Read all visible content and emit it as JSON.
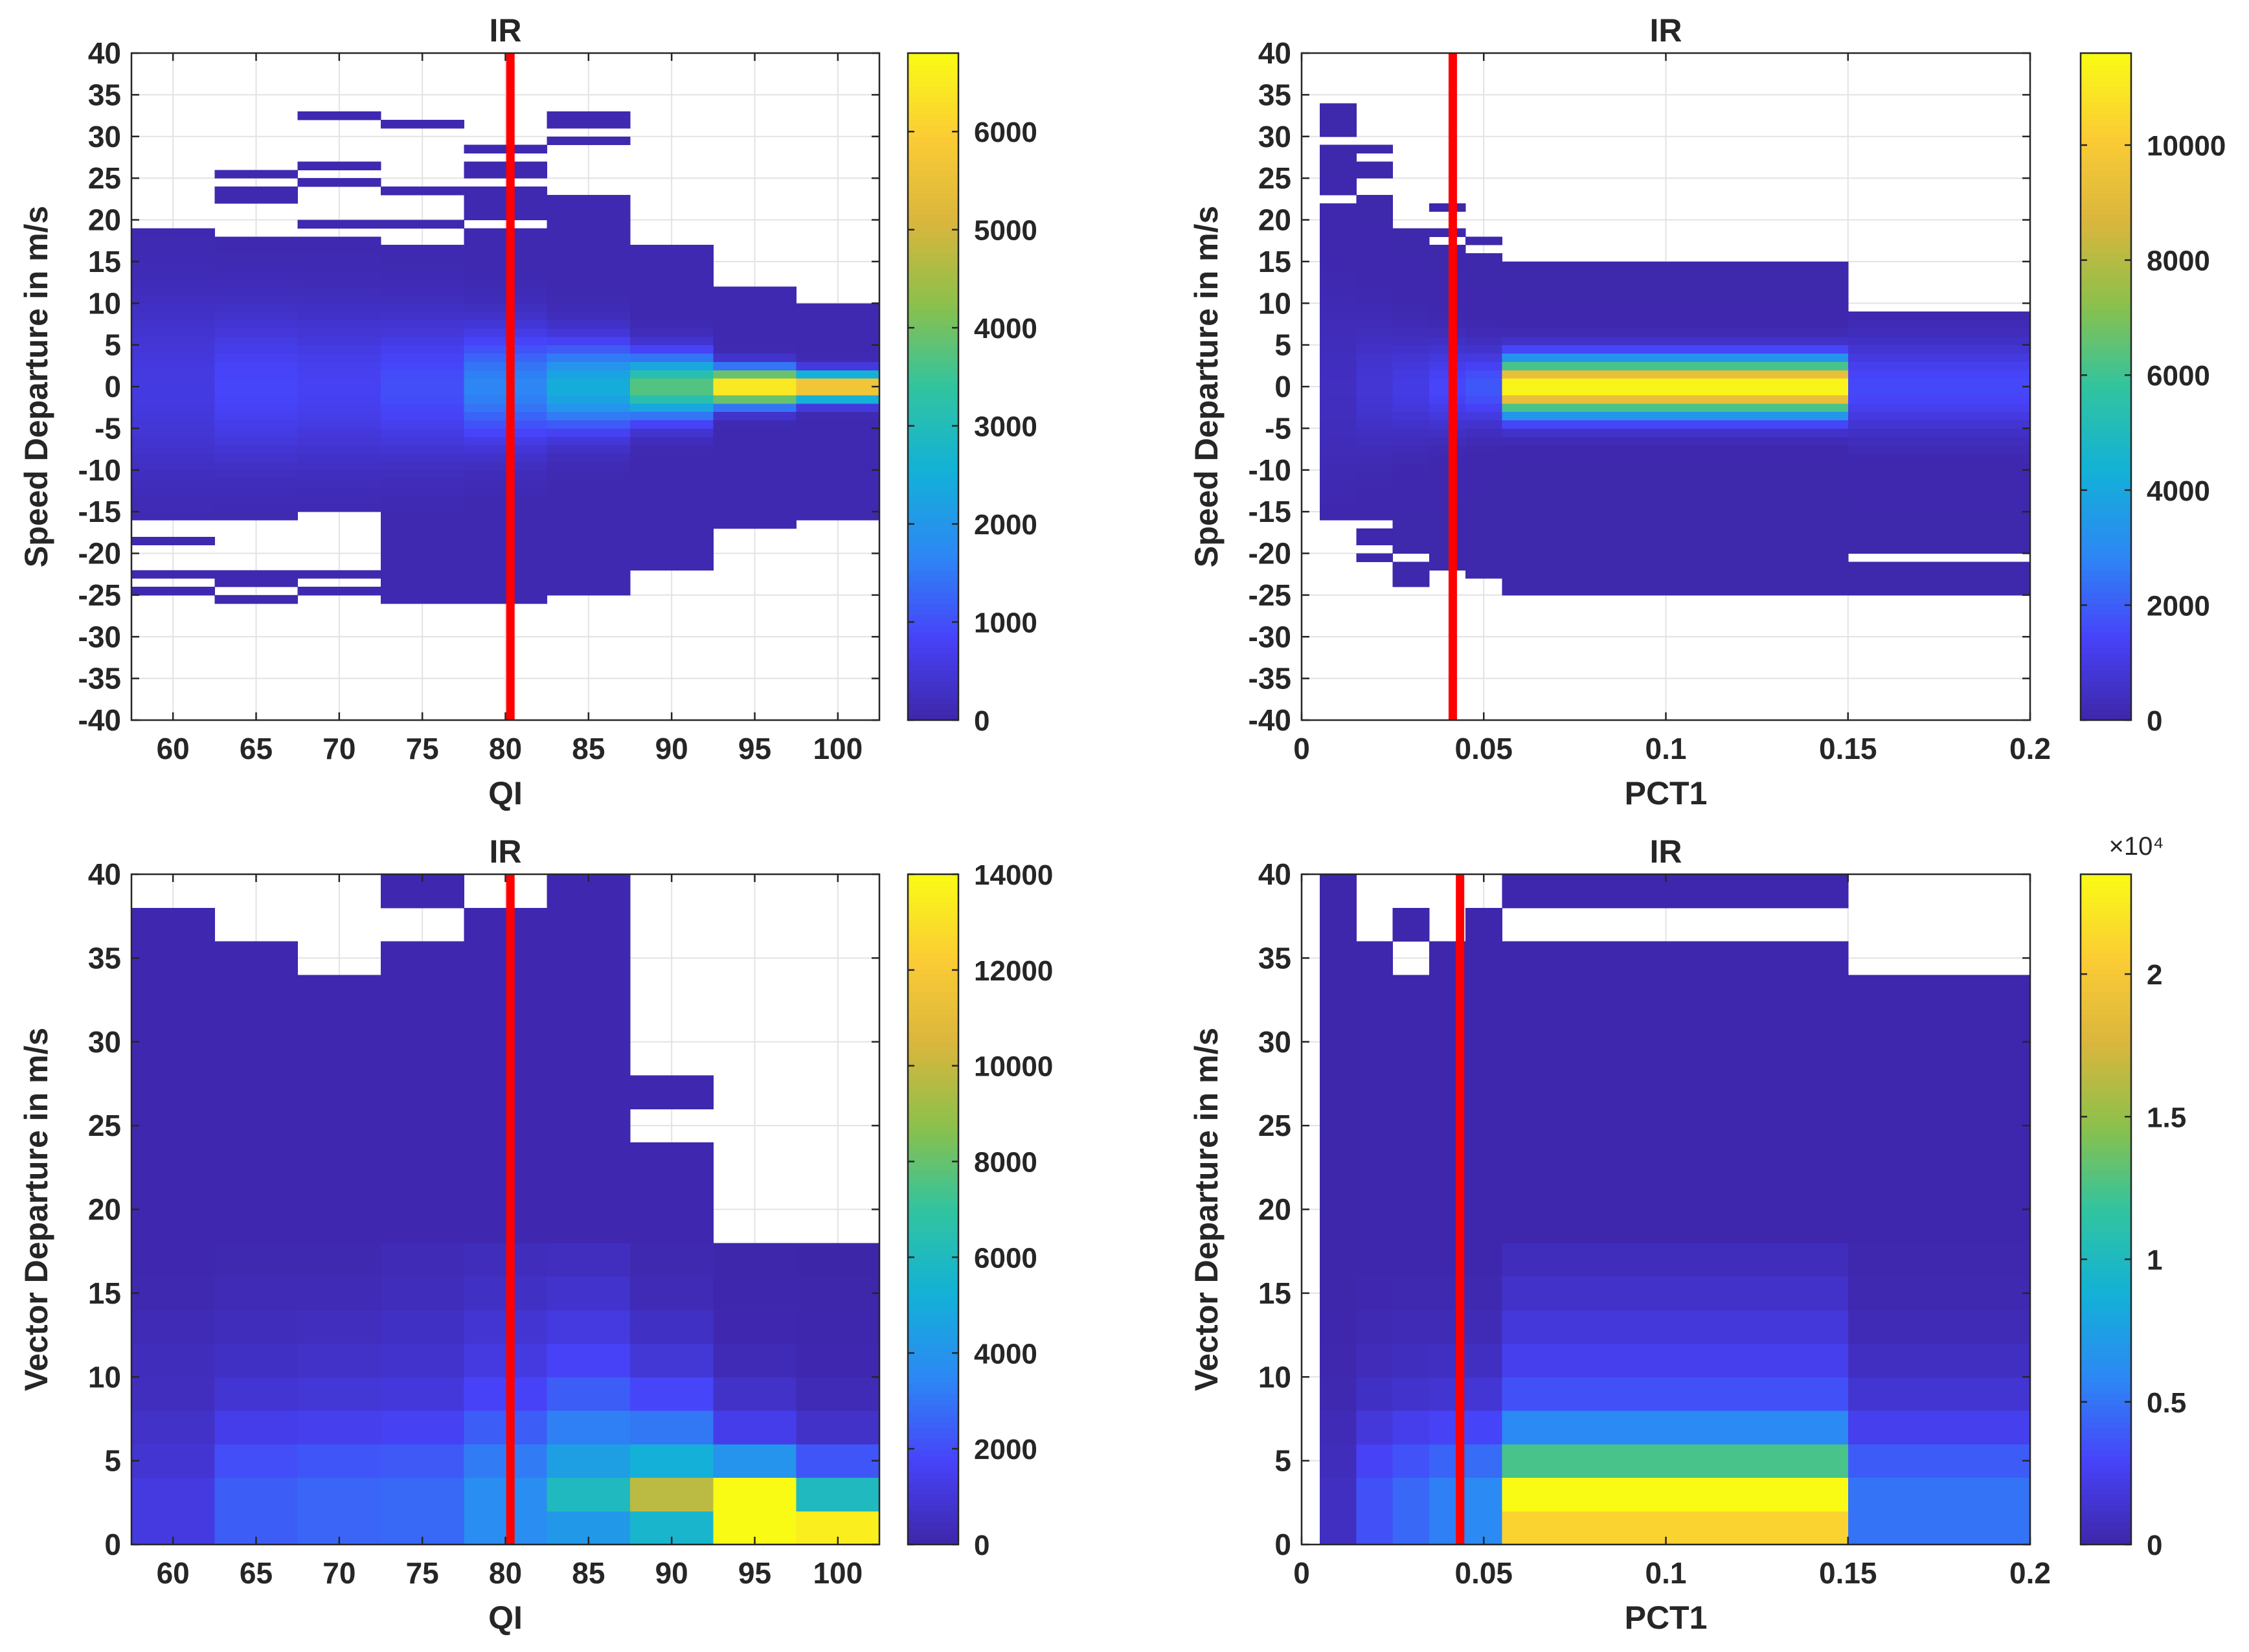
{
  "figure": {
    "colormap": [
      "#3e26a8",
      "#4743f9",
      "#2c88f4",
      "#13b1d7",
      "#31c49f",
      "#8cc04b",
      "#dbb63d",
      "#fbcc35",
      "#f9fb15"
    ],
    "threshold_line_color": "#ff0000",
    "mask_value_meaning": "white cells have zero count"
  },
  "chart_data": [
    {
      "type": "heatmap",
      "title": "IR",
      "xlabel": "QI",
      "ylabel": "Speed Departure in m/s",
      "xlim": [
        57.5,
        102.5
      ],
      "ylim": [
        -40,
        40
      ],
      "xticks": [
        60,
        65,
        70,
        75,
        80,
        85,
        90,
        95,
        100
      ],
      "yticks": [
        -40,
        -35,
        -30,
        -25,
        -20,
        -15,
        -10,
        -5,
        0,
        5,
        10,
        15,
        20,
        25,
        30,
        35,
        40
      ],
      "x_edges": [
        57.5,
        62.5,
        67.5,
        72.5,
        77.5,
        82.5,
        87.5,
        92.5,
        97.5,
        102.5
      ],
      "bin_height": 1,
      "threshold_x": 80.3,
      "clim": [
        0,
        6800
      ],
      "cbar_ticks": [
        0,
        1000,
        2000,
        3000,
        4000,
        5000,
        6000
      ],
      "cbar_exponent": "",
      "columns": [
        {
          "segments": [
            [
              -25,
              -24
            ],
            [
              -23,
              -22
            ],
            [
              -19,
              -18
            ],
            [
              -16,
              18
            ],
            [
              18,
              19
            ]
          ],
          "peak": 520,
          "width": 7
        },
        {
          "segments": [
            [
              -26,
              -25
            ],
            [
              -24,
              -23
            ],
            [
              -23,
              -22
            ],
            [
              -16,
              18
            ],
            [
              22,
              24
            ],
            [
              25,
              26
            ]
          ],
          "peak": 800,
          "width": 6
        },
        {
          "segments": [
            [
              -25,
              -24
            ],
            [
              -23,
              -22
            ],
            [
              -15,
              18
            ],
            [
              19,
              20
            ],
            [
              24,
              25
            ],
            [
              26,
              27
            ],
            [
              32,
              33
            ]
          ],
          "peak": 700,
          "width": 6
        },
        {
          "segments": [
            [
              -26,
              -15
            ],
            [
              -15,
              17
            ],
            [
              19,
              20
            ],
            [
              23,
              24
            ],
            [
              31,
              32
            ]
          ],
          "peak": 900,
          "width": 5.5
        },
        {
          "segments": [
            [
              -26,
              -15
            ],
            [
              -15,
              19
            ],
            [
              20,
              24
            ],
            [
              25,
              27
            ],
            [
              28,
              29
            ]
          ],
          "peak": 1600,
          "width": 4.5
        },
        {
          "segments": [
            [
              -25,
              -15
            ],
            [
              -15,
              23
            ],
            [
              29,
              30
            ],
            [
              31,
              33
            ]
          ],
          "peak": 2400,
          "width": 3.5
        },
        {
          "segments": [
            [
              -22,
              -15
            ],
            [
              -15,
              17
            ]
          ],
          "peak": 3700,
          "width": 2.5
        },
        {
          "segments": [
            [
              -17,
              -16
            ],
            [
              -16,
              -15
            ],
            [
              -15,
              12
            ]
          ],
          "peak": 6800,
          "width": 1.4
        },
        {
          "segments": [
            [
              -16,
              -15
            ],
            [
              -15,
              10
            ]
          ],
          "peak": 6200,
          "width": 1.1
        }
      ]
    },
    {
      "type": "heatmap",
      "title": "IR",
      "xlabel": "PCT1",
      "ylabel": "Speed Departure in m/s",
      "xlim": [
        0,
        0.2
      ],
      "ylim": [
        -40,
        40
      ],
      "xticks": [
        0,
        0.05,
        0.1,
        0.15,
        0.2
      ],
      "yticks": [
        -40,
        -35,
        -30,
        -25,
        -20,
        -15,
        -10,
        -5,
        0,
        5,
        10,
        15,
        20,
        25,
        30,
        35,
        40
      ],
      "x_edges": [
        0.005,
        0.015,
        0.025,
        0.035,
        0.045,
        0.055,
        0.15,
        0.2
      ],
      "bin_height": 1,
      "threshold_x": 0.0415,
      "clim": [
        0,
        11600
      ],
      "cbar_ticks": [
        0,
        2000,
        4000,
        6000,
        8000,
        10000
      ],
      "cbar_exponent": "",
      "columns": [
        {
          "segments": [
            [
              -16,
              22
            ],
            [
              23,
              29
            ],
            [
              30,
              34
            ]
          ],
          "peak": 350,
          "width": 7
        },
        {
          "segments": [
            [
              -21,
              -20
            ],
            [
              -19,
              -17
            ],
            [
              -16,
              23
            ],
            [
              25,
              27
            ],
            [
              28,
              29
            ]
          ],
          "peak": 700,
          "width": 5
        },
        {
          "segments": [
            [
              -24,
              -21
            ],
            [
              -20,
              19
            ]
          ],
          "peak": 1000,
          "width": 4
        },
        {
          "segments": [
            [
              -22,
              -16
            ],
            [
              -16,
              17
            ],
            [
              18,
              19
            ],
            [
              21,
              22
            ]
          ],
          "peak": 1400,
          "width": 3.5
        },
        {
          "segments": [
            [
              -23,
              -16
            ],
            [
              -16,
              16
            ],
            [
              17,
              18
            ]
          ],
          "peak": 1800,
          "width": 3
        },
        {
          "segments": [
            [
              -25,
              -16
            ],
            [
              -16,
              15
            ]
          ],
          "peak": 11600,
          "width": 2.2
        },
        {
          "segments": [
            [
              -25,
              -21
            ],
            [
              -20,
              -16
            ],
            [
              -16,
              9
            ]
          ],
          "peak": 1500,
          "width": 3.5
        }
      ]
    },
    {
      "type": "heatmap",
      "title": "IR",
      "xlabel": "QI",
      "ylabel": "Vector Departure in m/s",
      "xlim": [
        57.5,
        102.5
      ],
      "ylim": [
        0,
        40
      ],
      "xticks": [
        60,
        65,
        70,
        75,
        80,
        85,
        90,
        95,
        100
      ],
      "yticks": [
        0,
        5,
        10,
        15,
        20,
        25,
        30,
        35,
        40
      ],
      "x_edges": [
        57.5,
        62.5,
        67.5,
        72.5,
        77.5,
        82.5,
        87.5,
        92.5,
        97.5,
        102.5
      ],
      "bin_height": 2,
      "threshold_x": 80.3,
      "clim": [
        0,
        14000
      ],
      "cbar_ticks": [
        0,
        2000,
        4000,
        6000,
        8000,
        10000,
        12000,
        14000
      ],
      "cbar_exponent": "",
      "columns": [
        {
          "top": 38,
          "gaps": [],
          "values": [
            1200,
            1200,
            900,
            700,
            500,
            400,
            300,
            200,
            150
          ]
        },
        {
          "top": 36,
          "gaps": [],
          "values": [
            2400,
            2400,
            2000,
            1400,
            900,
            600,
            400,
            300,
            200
          ]
        },
        {
          "top": 34,
          "gaps": [],
          "values": [
            2600,
            2600,
            2200,
            1500,
            1000,
            700,
            500,
            300,
            200
          ]
        },
        {
          "top": 40,
          "gaps": [
            [
              36,
              38
            ]
          ],
          "values": [
            2700,
            2700,
            2300,
            1600,
            1100,
            800,
            600,
            400,
            300
          ]
        },
        {
          "top": 40,
          "gaps": [
            [
              38,
              40
            ]
          ],
          "values": [
            3700,
            3700,
            3200,
            2400,
            1700,
            1200,
            900,
            600,
            400
          ]
        },
        {
          "top": 40,
          "gaps": [],
          "values": [
            4200,
            6000,
            4500,
            3300,
            2400,
            1700,
            1200,
            800,
            500
          ]
        },
        {
          "top": 28,
          "gaps": [
            [
              24,
              26
            ]
          ],
          "values": [
            5600,
            9800,
            5200,
            3100,
            1800,
            1000,
            600,
            300,
            200
          ]
        },
        {
          "top": 24,
          "gaps": [
            [
              18,
              24
            ]
          ],
          "values": [
            14000,
            14000,
            4000,
            1400,
            700,
            300,
            150,
            80,
            40
          ]
        },
        {
          "top": 18,
          "gaps": [],
          "values": [
            13500,
            6000,
            2200,
            700,
            300,
            150,
            80,
            40,
            20
          ]
        }
      ]
    },
    {
      "type": "heatmap",
      "title": "IR",
      "xlabel": "PCT1",
      "ylabel": "Vector Departure in m/s",
      "xlim": [
        0,
        0.2
      ],
      "ylim": [
        0,
        40
      ],
      "xticks": [
        0,
        0.05,
        0.1,
        0.15,
        0.2
      ],
      "yticks": [
        0,
        5,
        10,
        15,
        20,
        25,
        30,
        35,
        40
      ],
      "x_edges": [
        0.005,
        0.015,
        0.025,
        0.035,
        0.045,
        0.055,
        0.15,
        0.2
      ],
      "bin_height": 2,
      "threshold_x": 0.0435,
      "clim": [
        0,
        23500
      ],
      "cbar_ticks": [
        0,
        0.5,
        1,
        1.5,
        2
      ],
      "cbar_tick_values": [
        0,
        5000,
        10000,
        15000,
        20000
      ],
      "cbar_exponent": "×10⁴",
      "columns": [
        {
          "top": 40,
          "gaps": [],
          "values": [
            900,
            900,
            700,
            500,
            300,
            200,
            150,
            100
          ]
        },
        {
          "top": 36,
          "gaps": [],
          "values": [
            3500,
            3500,
            2800,
            1800,
            1000,
            600,
            400,
            250
          ]
        },
        {
          "top": 38,
          "gaps": [
            [
              34,
              36
            ],
            [
              36,
              36
            ]
          ],
          "values": [
            4500,
            4500,
            3600,
            2400,
            1300,
            800,
            500,
            300
          ]
        },
        {
          "top": 36,
          "gaps": [],
          "values": [
            5500,
            5500,
            4300,
            2800,
            1500,
            900,
            500,
            300
          ]
        },
        {
          "top": 38,
          "gaps": [],
          "values": [
            6000,
            6000,
            4700,
            3000,
            1600,
            900,
            500,
            300
          ]
        },
        {
          "top": 40,
          "gaps": [
            [
              36,
              38
            ]
          ],
          "values": [
            21000,
            23500,
            12500,
            6000,
            3500,
            2500,
            1800,
            1200,
            700
          ]
        },
        {
          "top": 34,
          "gaps": [],
          "values": [
            5000,
            5000,
            4000,
            2500,
            1500,
            900,
            500,
            300,
            200
          ]
        }
      ]
    }
  ]
}
